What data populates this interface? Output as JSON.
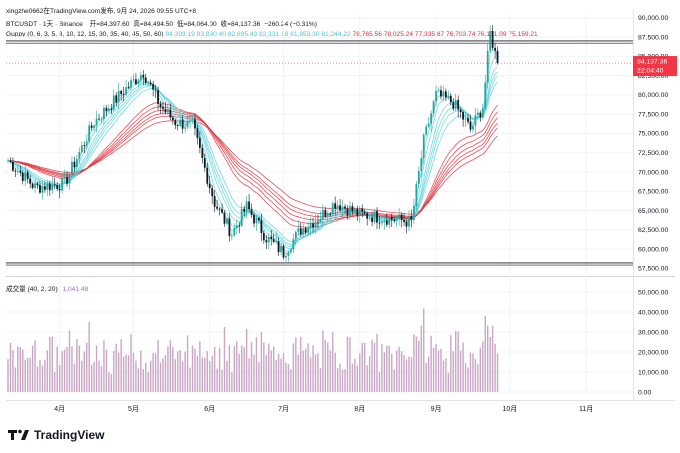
{
  "header": {
    "attribution": "xingzhe0662在TradingView.com发布, 9月 24, 2026 09:55 UTC+8",
    "symbol_line": {
      "symbol": "BTCUSDT · 1天 · Binance",
      "open_label": "开",
      "open": "=84,397.60",
      "high_label": "高",
      "high": "=84,494.50",
      "low_label": "低",
      "low": "=84,064.00",
      "close_label": "收",
      "close": "=84,137.36",
      "change": "−260.24 (−0.31%)"
    },
    "guppy_line": {
      "title": "Guppy (0, 6, 3, 5, 8, 10, 12, 15, 30, 35, 40, 45, 50, 60)",
      "short_values": [
        "84,393.19",
        "83,890.40",
        "82,895.43",
        "82,331.18",
        "81,853.30",
        "81,244.22"
      ],
      "long_values": [
        "78,765.56",
        "78,025.24",
        "77,335.87",
        "76,703.74",
        "76,131.09",
        "75,159.21"
      ]
    }
  },
  "price_axis": {
    "ticks": [
      "90,000.00",
      "87,500.00",
      "85,000.00",
      "82,500.00",
      "80,000.00",
      "77,500.00",
      "75,000.00",
      "72,500.00",
      "70,000.00",
      "67,500.00",
      "65,000.00",
      "62,500.00",
      "60,000.00",
      "57,500.00"
    ],
    "current_price": "84,137.36",
    "countdown": "22:04:40"
  },
  "volume_pane": {
    "title": "成交量 (40, 2, 20)",
    "value": "1,041.48",
    "ticks": [
      "50,000.00",
      "40,000.00",
      "30,000.00",
      "20,000.00",
      "10,000.00",
      "0.00"
    ]
  },
  "time_axis": {
    "ticks": [
      "4月",
      "5月",
      "6月",
      "7月",
      "8月",
      "9月",
      "10月",
      "11月"
    ]
  },
  "footer": {
    "brand": "TradingView"
  },
  "colors": {
    "up": "#26a69a",
    "down": "#131722",
    "short_ema": "#5bd3e0",
    "long_ema": "#e0313c",
    "price_label": "#f23645",
    "volume": "#c9a6c6"
  },
  "chart_data": {
    "type": "candlestick",
    "ylim": [
      56500,
      90500
    ],
    "volume_ylim": [
      0,
      52000
    ],
    "horizontal_lines": [
      87000,
      58200
    ],
    "x_months": [
      "4月",
      "5月",
      "6月",
      "7月",
      "8月",
      "9月",
      "10月",
      "11月"
    ],
    "key_points": [
      {
        "date": "Mar 11",
        "close": 71500
      },
      {
        "date": "Mar 22",
        "close": 68000
      },
      {
        "date": "Apr 3",
        "close": 68500
      },
      {
        "date": "Apr 15",
        "close": 76500
      },
      {
        "date": "Apr 27",
        "close": 80500
      },
      {
        "date": "May 5",
        "close": 83000
      },
      {
        "date": "May 12",
        "close": 78500
      },
      {
        "date": "May 18",
        "close": 76500
      },
      {
        "date": "May 25",
        "close": 76000
      },
      {
        "date": "Jun 3",
        "close": 66000
      },
      {
        "date": "Jun 10",
        "close": 62000
      },
      {
        "date": "Jun 16",
        "close": 65500
      },
      {
        "date": "Jun 24",
        "close": 61500
      },
      {
        "date": "Jul 1",
        "close": 59500
      },
      {
        "date": "Jul 8",
        "close": 62500
      },
      {
        "date": "Jul 15",
        "close": 64000
      },
      {
        "date": "Jul 22",
        "close": 66000
      },
      {
        "date": "Aug 1",
        "close": 64500
      },
      {
        "date": "Aug 12",
        "close": 64000
      },
      {
        "date": "Aug 22",
        "close": 63500
      },
      {
        "date": "Aug 27",
        "close": 74000
      },
      {
        "date": "Sep 1",
        "close": 80000
      },
      {
        "date": "Sep 8",
        "close": 79000
      },
      {
        "date": "Sep 15",
        "close": 75500
      },
      {
        "date": "Sep 20",
        "close": 78500
      },
      {
        "date": "Sep 23",
        "close": 88000
      },
      {
        "date": "Sep 26",
        "close": 84137
      }
    ]
  }
}
